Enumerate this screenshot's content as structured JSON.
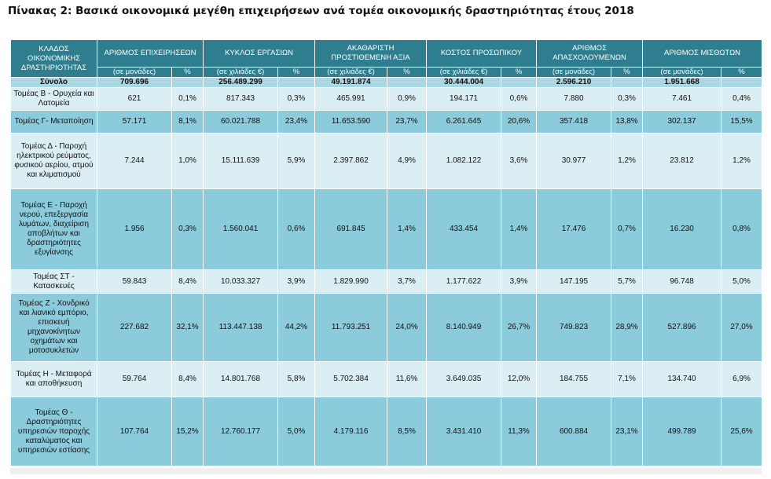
{
  "title": "Πίνακας 2: Βασικά οικονομικά μεγέθη επιχειρήσεων ανά τομέα οικονομικής δραστηριότητας έτους 2018",
  "header": {
    "sector": "ΚΛΑΔΟΣ ΟΙΚΟΝΟΜΙΚΗΣ ΔΡΑΣΤΗΡΙΟΤΗΤΑΣ",
    "groups": [
      {
        "label": "ΑΡΙΘΜΟΣ ΕΠΙΧΕΙΡΗΣΕΩΝ",
        "unit": "(σε μονάδες)",
        "pct": "%"
      },
      {
        "label": "ΚΥΚΛΟΣ ΕΡΓΑΣΙΩΝ",
        "unit": "(σε χιλιάδες €)",
        "pct": "%"
      },
      {
        "label": "ΑΚΑΘΑΡΙΣΤΗ ΠΡΟΣΤΙΘΕΜΕΝΗ ΑΞΙΑ",
        "unit": "(σε χιλιάδες €)",
        "pct": "%"
      },
      {
        "label": "ΚΟΣΤΟΣ ΠΡΟΣΩΠΙΚΟΥ",
        "unit": "(σε χιλιάδες €)",
        "pct": "%"
      },
      {
        "label": "ΑΡΙΘΜΟΣ ΑΠΑΣΧΟΛΟΥΜΕΝΩΝ",
        "unit": "(σε μονάδες)",
        "pct": "%"
      },
      {
        "label": "ΑΡΙΘΜΟΣ ΜΙΣΘΩΤΩΝ",
        "unit": "(σε μονάδες)",
        "pct": "%"
      }
    ]
  },
  "total": {
    "label": "Σύνολο",
    "values": [
      "709.696",
      "",
      "256.489.299",
      "",
      "49.191.874",
      "",
      "30.444.004",
      "",
      "2.596.210",
      "",
      "1.951.668",
      ""
    ]
  },
  "rows": [
    {
      "sector": "Τομέας Β - Ορυχεία και Λατομεία",
      "values": [
        "621",
        "0,1%",
        "817.343",
        "0,3%",
        "465.991",
        "0,9%",
        "194.171",
        "0,6%",
        "7.880",
        "0,3%",
        "7.461",
        "0,4%"
      ]
    },
    {
      "sector": "Τομέας Γ- Μεταποίηση",
      "values": [
        "57.171",
        "8,1%",
        "60.021.788",
        "23,4%",
        "11.653.590",
        "23,7%",
        "6.261.645",
        "20,6%",
        "357.418",
        "13,8%",
        "302.137",
        "15,5%"
      ]
    },
    {
      "sector": "Τομέας Δ - Παροχή ηλεκτρικού ρεύματος, φυσικού αερίου, ατμού και κλιματισμού",
      "values": [
        "7.244",
        "1,0%",
        "15.111.639",
        "5,9%",
        "2.397.862",
        "4,9%",
        "1.082.122",
        "3,6%",
        "30.977",
        "1,2%",
        "23.812",
        "1,2%"
      ]
    },
    {
      "sector": "Τομέας Ε - Παροχή νερού, επεξεργασία λυμάτων, διαχείριση αποβλήτων και δραστηριότητες εξυγίανσης",
      "values": [
        "1.956",
        "0,3%",
        "1.560.041",
        "0,6%",
        "691.845",
        "1,4%",
        "433.454",
        "1,4%",
        "17.476",
        "0,7%",
        "16.230",
        "0,8%"
      ]
    },
    {
      "sector": "Τομέας ΣΤ - Κατασκευές",
      "values": [
        "59.843",
        "8,4%",
        "10.033.327",
        "3,9%",
        "1.829.990",
        "3,7%",
        "1.177.622",
        "3,9%",
        "147.195",
        "5,7%",
        "96.748",
        "5,0%"
      ]
    },
    {
      "sector": "Τομέας Ζ - Χονδρικό και λιανικό εμπόριο, επισκευή μηχανοκίνητων οχημάτων και μοτοσυκλετών",
      "values": [
        "227.682",
        "32,1%",
        "113.447.138",
        "44,2%",
        "11.793.251",
        "24,0%",
        "8.140.949",
        "26,7%",
        "749.823",
        "28,9%",
        "527.896",
        "27,0%"
      ]
    },
    {
      "sector": "Τομέας Η - Μεταφορά και αποθήκευση",
      "values": [
        "59.764",
        "8,4%",
        "14.801.768",
        "5,8%",
        "5.702.384",
        "11,6%",
        "3.649.035",
        "12,0%",
        "184.755",
        "7,1%",
        "134.740",
        "6,9%"
      ]
    },
    {
      "sector": "Τομέας Θ - Δραστηριότητες υπηρεσιών παροχής καταλύματος και υπηρεσιών εστίασης",
      "values": [
        "107.764",
        "15,2%",
        "12.760.177",
        "5,0%",
        "4.179.116",
        "8,5%",
        "3.431.410",
        "11,3%",
        "600.884",
        "23,1%",
        "499.789",
        "25,6%"
      ]
    }
  ]
}
